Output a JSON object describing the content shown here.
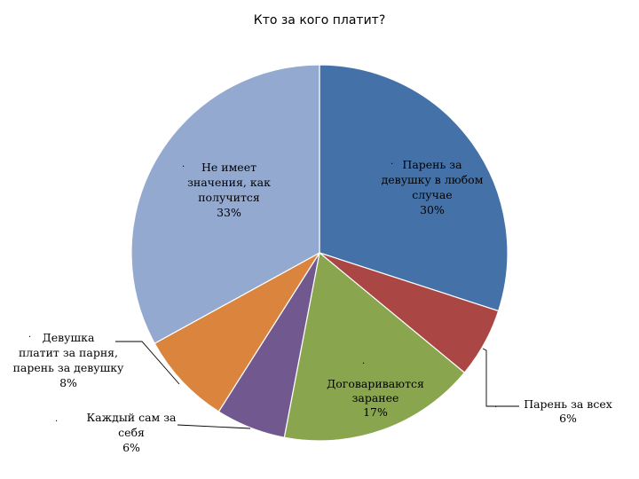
{
  "chart_data": {
    "type": "pie",
    "title": "Кто за кого платит?",
    "slices": [
      {
        "name": "Парень за девушку в любом случае",
        "value": 30,
        "color": "#4472A8"
      },
      {
        "name": "Парень за всех",
        "value": 6,
        "color": "#AA4643"
      },
      {
        "name": "Договариваются заранее",
        "value": 17,
        "color": "#89A54E"
      },
      {
        "name": "Каждый сам за себя",
        "value": 6,
        "color": "#71588F"
      },
      {
        "name": "Девушка платит за парня, парень за девушку",
        "value": 8,
        "color": "#DB843D"
      },
      {
        "name": "Не имеет значения, как получится",
        "value": 33,
        "color": "#93A9CF"
      }
    ],
    "data_labels": [
      {
        "lines": [
          "Парень за",
          "девушку в любом",
          "случае",
          "30%"
        ]
      },
      {
        "lines": [
          "Парень за всех",
          "6%"
        ]
      },
      {
        "lines": [
          "Договариваются",
          "заранее",
          "17%"
        ]
      },
      {
        "lines": [
          "Каждый сам за",
          "себя",
          "6%"
        ]
      },
      {
        "lines": [
          "Девушка",
          "платит за парня,",
          "парень за девушку",
          "8%"
        ]
      },
      {
        "lines": [
          "Не имеет",
          "значения, как",
          "получится",
          "33%"
        ]
      }
    ],
    "bullet": "·"
  }
}
